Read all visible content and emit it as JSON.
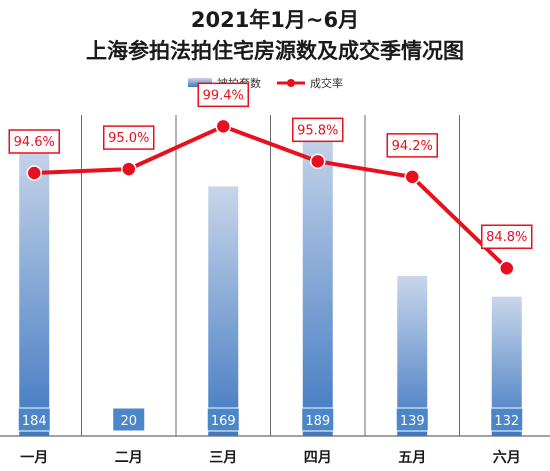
{
  "chart_data": {
    "type": "bar",
    "title_line1": "2021年1月~6月",
    "title_line2": "上海参拍法拍住宅房源数及成交季情况图",
    "categories": [
      "一月",
      "二月",
      "三月",
      "四月",
      "五月",
      "六月"
    ],
    "series": [
      {
        "name": "被拍套数",
        "type": "bar",
        "values": [
          184,
          20,
          169,
          189,
          139,
          132
        ],
        "labels": [
          "184",
          "20",
          "169",
          "189",
          "139",
          "132"
        ]
      },
      {
        "name": "成交率",
        "type": "line",
        "values": [
          94.6,
          95.0,
          99.4,
          95.8,
          94.2,
          84.8
        ],
        "labels": [
          "94.6%",
          "95.0%",
          "99.4%",
          "95.8%",
          "94.2%",
          "84.8%"
        ]
      }
    ],
    "grid": "vertical",
    "legend_position": "top-center",
    "colors": {
      "bar_top": "#c9d6ea",
      "bar_bottom": "#3f78c1",
      "label_box": "#4a86c8",
      "line": "#e8101e",
      "grid": "#6a6a6a"
    }
  }
}
